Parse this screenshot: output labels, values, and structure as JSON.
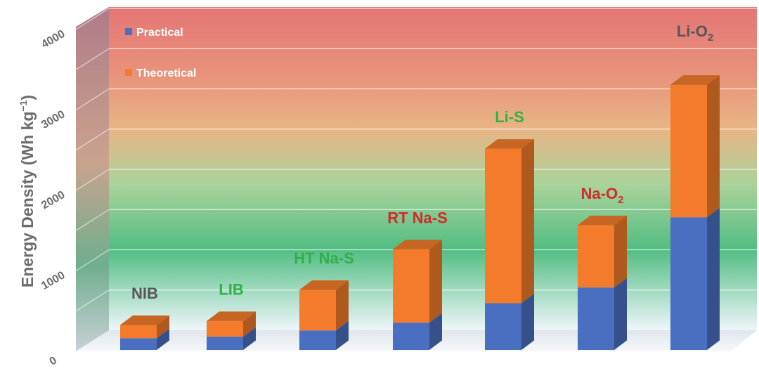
{
  "chart_data": {
    "type": "bar",
    "stacked": true,
    "three_d": true,
    "title": "",
    "xlabel": "",
    "ylabel": "Energy Density (Wh kg",
    "ylabel_sup": "−1",
    "ylabel_close": ")",
    "ylim": [
      0,
      4000
    ],
    "yticks": [
      "0",
      "1000",
      "2000",
      "3000",
      "4000"
    ],
    "categories": [
      {
        "label": "NIB",
        "sub": "",
        "color": "#555555"
      },
      {
        "label": "LIB",
        "sub": "",
        "color": "#2fb04a"
      },
      {
        "label": "HT Na-S",
        "sub": "",
        "color": "#2fb04a"
      },
      {
        "label": "RT Na-S",
        "sub": "",
        "color": "#d12a2a"
      },
      {
        "label": "Li-S",
        "sub": "",
        "color": "#2fb04a"
      },
      {
        "label": "Na-O",
        "sub": "2",
        "color": "#d12a2a"
      },
      {
        "label": "Li-O",
        "sub": "2",
        "color": "#555555"
      }
    ],
    "series": [
      {
        "name": "Practical",
        "color": "#4a6fc1",
        "values": [
          150,
          170,
          250,
          350,
          600,
          800,
          1700
        ]
      },
      {
        "name": "Theoretical",
        "color": "#f37b2b",
        "values": [
          170,
          200,
          520,
          940,
          1980,
          800,
          1700
        ]
      }
    ],
    "background_gradient": [
      "#e57a7a",
      "#e9a07a",
      "#e8b886",
      "#9fd29a",
      "#4fbf80",
      "#eaf4fa"
    ],
    "grid": true,
    "legend_position": "top-left"
  }
}
